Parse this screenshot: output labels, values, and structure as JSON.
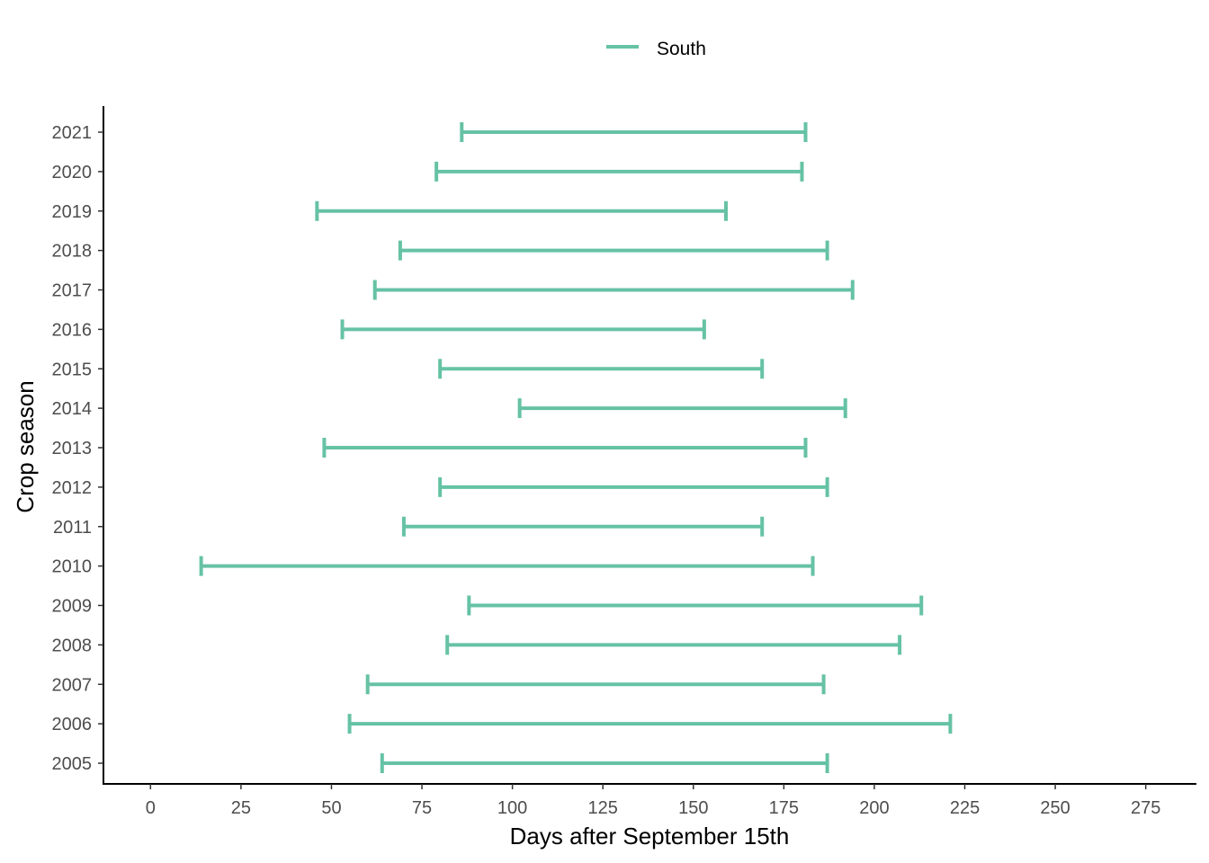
{
  "chart_data": {
    "type": "range_bar",
    "title": "",
    "xlabel": "Days after September 15th",
    "ylabel": "Crop season",
    "xlim": [
      -13,
      289
    ],
    "x_ticks": [
      0,
      25,
      50,
      75,
      100,
      125,
      150,
      175,
      200,
      225,
      250,
      275
    ],
    "categories": [
      "2005",
      "2006",
      "2007",
      "2008",
      "2009",
      "2010",
      "2011",
      "2012",
      "2013",
      "2014",
      "2015",
      "2016",
      "2017",
      "2018",
      "2019",
      "2020",
      "2021"
    ],
    "grid": false,
    "legend": {
      "position": "top"
    },
    "series": [
      {
        "name": "South",
        "color": "#66c2a5",
        "ranges": [
          {
            "season": "2005",
            "start": 64,
            "end": 187
          },
          {
            "season": "2006",
            "start": 55,
            "end": 221
          },
          {
            "season": "2007",
            "start": 60,
            "end": 186
          },
          {
            "season": "2008",
            "start": 82,
            "end": 207
          },
          {
            "season": "2009",
            "start": 88,
            "end": 213
          },
          {
            "season": "2010",
            "start": 14,
            "end": 183
          },
          {
            "season": "2011",
            "start": 70,
            "end": 169
          },
          {
            "season": "2012",
            "start": 80,
            "end": 187
          },
          {
            "season": "2013",
            "start": 48,
            "end": 181
          },
          {
            "season": "2014",
            "start": 102,
            "end": 192
          },
          {
            "season": "2015",
            "start": 80,
            "end": 169
          },
          {
            "season": "2016",
            "start": 53,
            "end": 153
          },
          {
            "season": "2017",
            "start": 62,
            "end": 194
          },
          {
            "season": "2018",
            "start": 69,
            "end": 187
          },
          {
            "season": "2019",
            "start": 46,
            "end": 159
          },
          {
            "season": "2020",
            "start": 79,
            "end": 180
          },
          {
            "season": "2021",
            "start": 86,
            "end": 181
          }
        ]
      }
    ]
  }
}
